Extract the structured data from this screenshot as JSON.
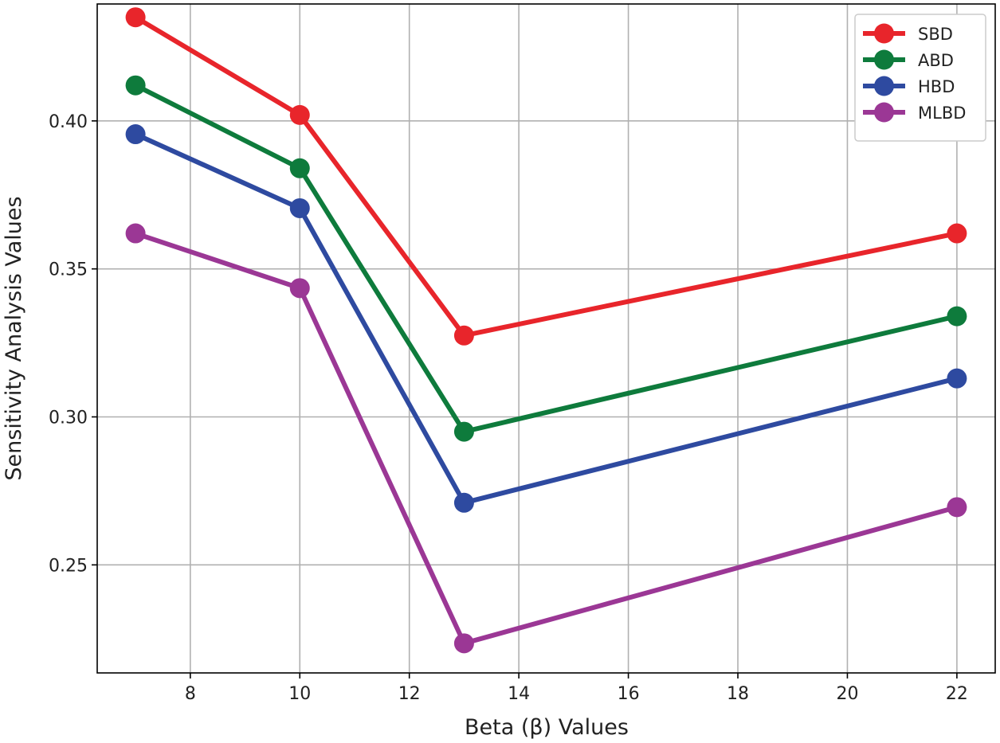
{
  "chart_data": {
    "type": "line",
    "title": "",
    "xlabel": "Beta (β) Values",
    "ylabel": "Sensitivity Analysis Values",
    "x": [
      7,
      10,
      13,
      22
    ],
    "xlim": [
      6.3,
      22.7
    ],
    "ylim": [
      0.2135,
      0.4395
    ],
    "xticks": [
      8,
      10,
      12,
      14,
      16,
      18,
      20,
      22
    ],
    "yticks": [
      0.25,
      0.3,
      0.35,
      0.4
    ],
    "xtick_labels": [
      "8",
      "10",
      "12",
      "14",
      "16",
      "18",
      "20",
      "22"
    ],
    "ytick_labels": [
      "0.25",
      "0.30",
      "0.35",
      "0.40"
    ],
    "grid": true,
    "legend_position": "top-right",
    "series": [
      {
        "name": "SBD",
        "color": "#e8252b",
        "values": [
          0.435,
          0.402,
          0.3275,
          0.362
        ]
      },
      {
        "name": "ABD",
        "color": "#0e7b3c",
        "values": [
          0.412,
          0.384,
          0.295,
          0.334
        ]
      },
      {
        "name": "HBD",
        "color": "#2e4aa0",
        "values": [
          0.3955,
          0.3705,
          0.271,
          0.313
        ]
      },
      {
        "name": "MLBD",
        "color": "#9b3795",
        "values": [
          0.362,
          0.3435,
          0.2235,
          0.2695
        ]
      }
    ]
  }
}
